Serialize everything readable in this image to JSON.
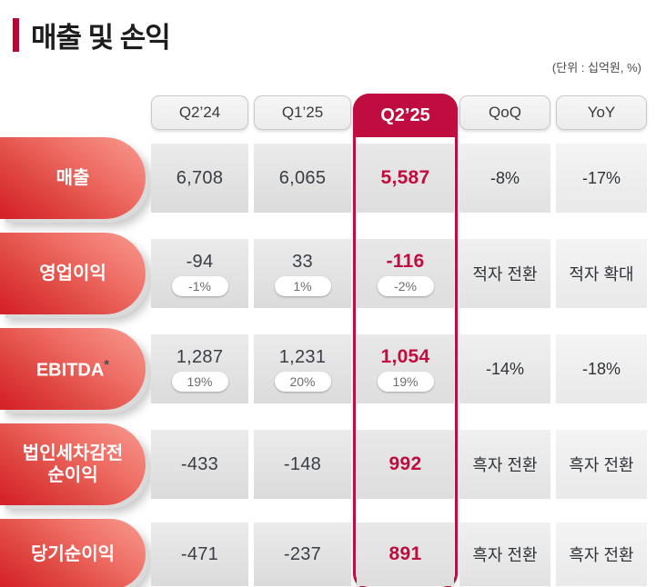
{
  "slide": {
    "title": "매출 및 손익",
    "unit_note": "(단위 : 십억원, %)"
  },
  "colors": {
    "accent": "#be0d3e",
    "title_bar": "#b00c35",
    "capsule_gradient_light": "#f89a90",
    "capsule_gradient_dark": "#d5232a",
    "highlight_value_text": "#be0d3e",
    "value_text": "#3a3e44"
  },
  "table": {
    "columns": [
      "Q2’24",
      "Q1’25",
      "Q2’25",
      "QoQ",
      "YoY"
    ],
    "highlighted_column": "Q2’25",
    "rows": [
      {
        "label": "매출",
        "cells": [
          {
            "value": "6,708"
          },
          {
            "value": "6,065"
          },
          {
            "value": "5,587"
          },
          {
            "value": "-8%"
          },
          {
            "value": "-17%"
          }
        ]
      },
      {
        "label": "영업이익",
        "cells": [
          {
            "value": "-94",
            "margin": "-1%"
          },
          {
            "value": "33",
            "margin": "1%"
          },
          {
            "value": "-116",
            "margin": "-2%"
          },
          {
            "value": "적자 전환"
          },
          {
            "value": "적자 확대"
          }
        ]
      },
      {
        "label": "EBITDA",
        "label_note": "*",
        "cells": [
          {
            "value": "1,287",
            "margin": "19%"
          },
          {
            "value": "1,231",
            "margin": "20%"
          },
          {
            "value": "1,054",
            "margin": "19%"
          },
          {
            "value": "-14%"
          },
          {
            "value": "-18%"
          }
        ]
      },
      {
        "label": "법인세차감전 순이익",
        "cells": [
          {
            "value": "-433"
          },
          {
            "value": "-148"
          },
          {
            "value": "992"
          },
          {
            "value": "흑자 전환"
          },
          {
            "value": "흑자 전환"
          }
        ]
      },
      {
        "label": "당기순이익",
        "cells": [
          {
            "value": "-471"
          },
          {
            "value": "-237"
          },
          {
            "value": "891"
          },
          {
            "value": "흑자 전환"
          },
          {
            "value": "흑자 전환"
          }
        ]
      }
    ]
  }
}
